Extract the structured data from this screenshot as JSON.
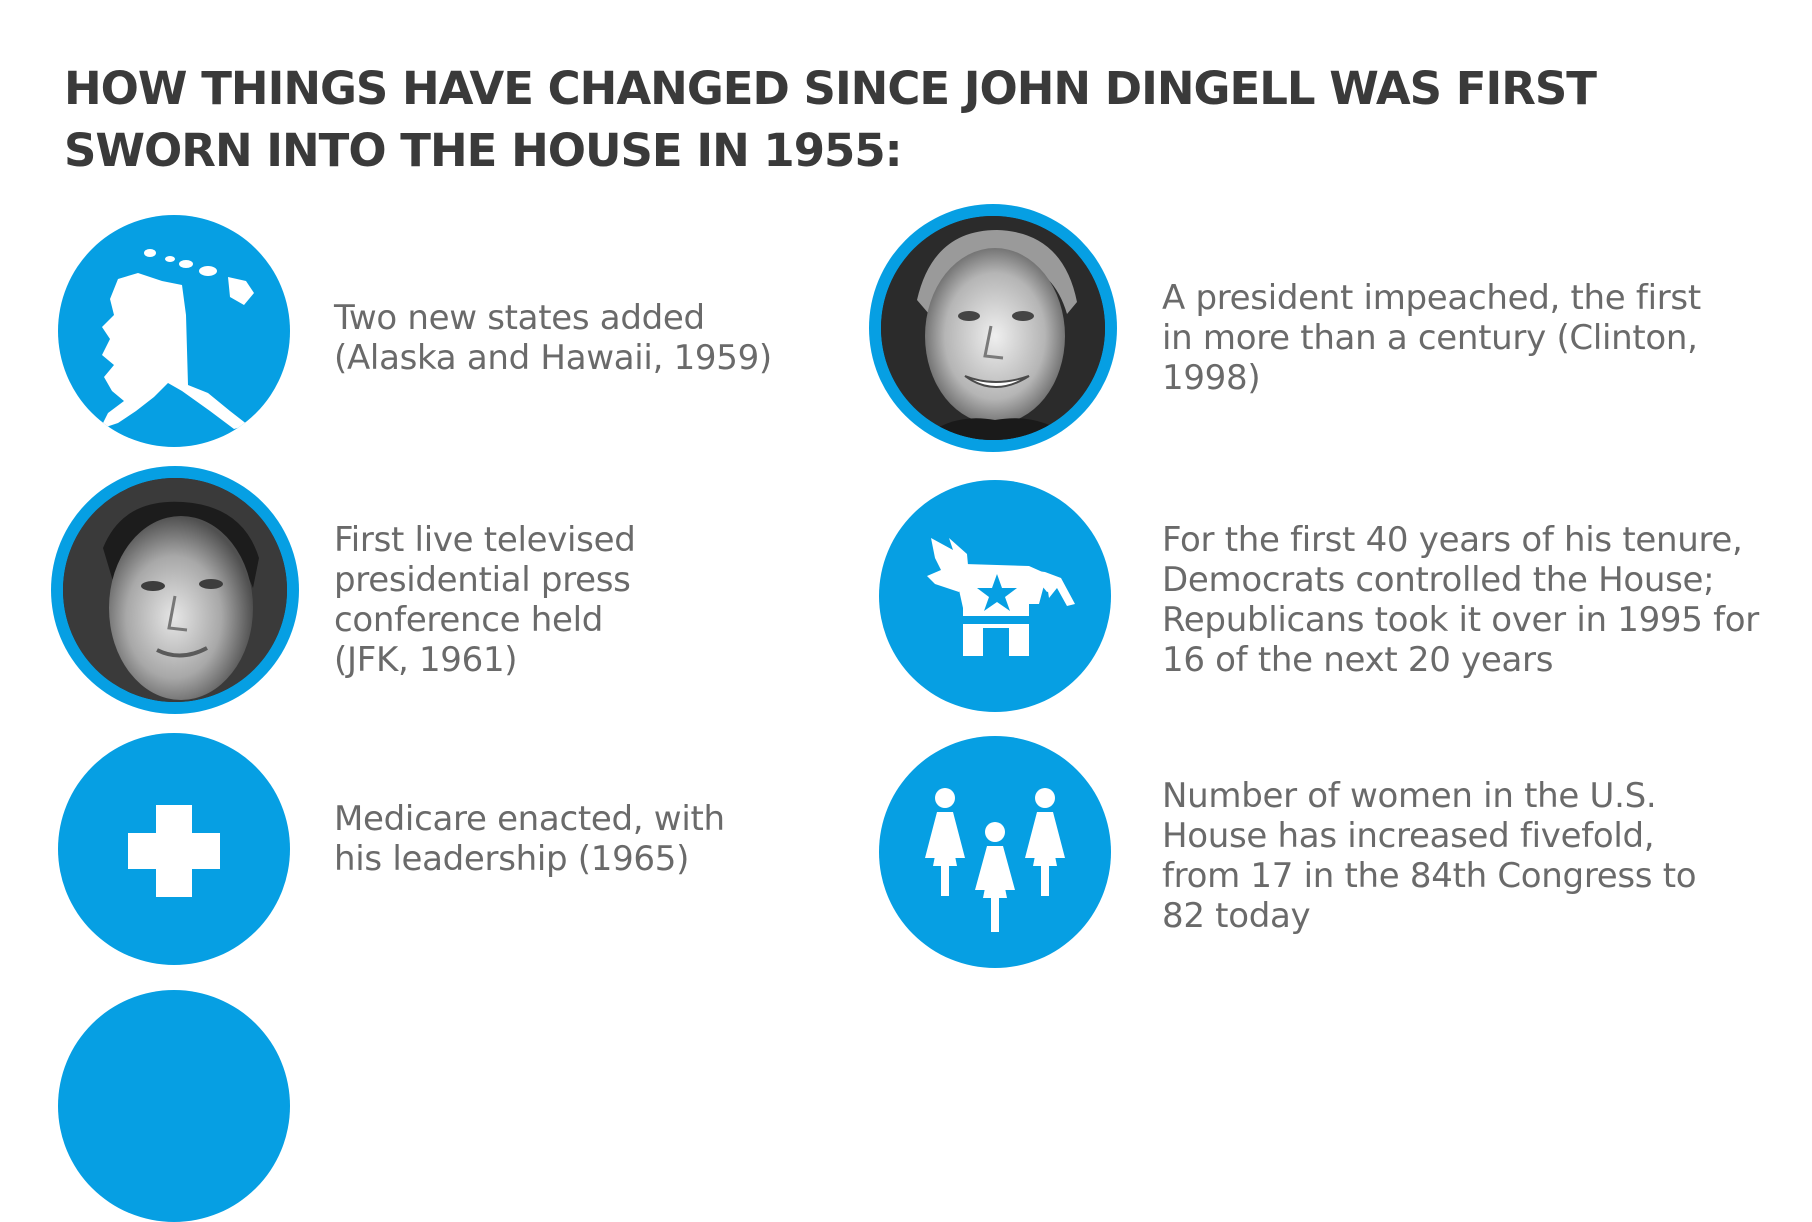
{
  "title": {
    "line1": "HOW THINGS HAVE CHANGED SINCE JOHN DINGELL WAS FIRST",
    "line2": "SWORN INTO THE HOUSE IN 1955:"
  },
  "accent_color": "#069fe3",
  "facts": [
    {
      "icon": "alaska-hawaii-map-icon",
      "lines": [
        "Two new states added",
        "(Alaska and Hawaii, 1959)"
      ]
    },
    {
      "icon": "jfk-portrait",
      "lines": [
        "First live televised",
        "presidential press",
        "conference held",
        "(JFK, 1961)"
      ]
    },
    {
      "icon": "medical-cross-icon",
      "lines": [
        "Medicare enacted, with",
        "his leadership (1965)"
      ]
    },
    {
      "icon": "clinton-portrait",
      "lines": [
        "A president impeached, the first",
        "in more than a century (Clinton,",
        "1998)"
      ]
    },
    {
      "icon": "democratic-donkey-icon",
      "lines": [
        "For the first 40 years of his tenure,",
        "Democrats controlled the House;",
        "Republicans took it over in 1995 for",
        "16 of the next 20 years"
      ]
    },
    {
      "icon": "women-group-icon",
      "lines": [
        "Number of women in the U.S.",
        "House has increased fivefold,",
        "from 17 in the 84th Congress to",
        "82 today"
      ]
    }
  ]
}
